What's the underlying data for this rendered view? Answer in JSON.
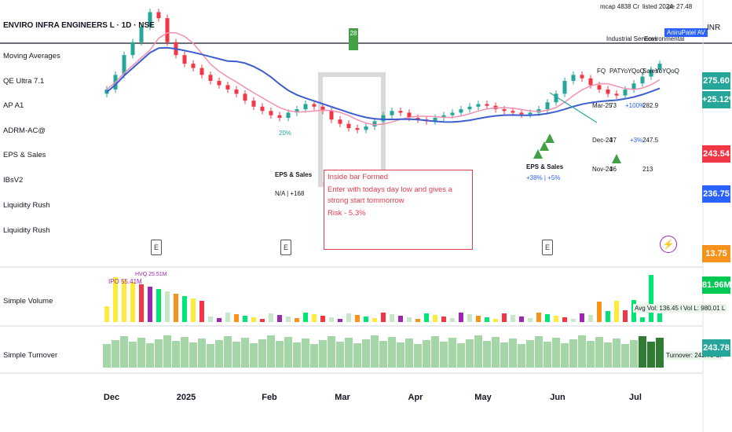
{
  "header": {
    "title": "ENVIRO INFRA ENGINEERS L · 1D · NSE",
    "currency": "INR",
    "marketcap": "mcap 4838 Cr",
    "listed": "listed 2024",
    "pe": "pe 27.48",
    "sector": "Industrial Services",
    "industry": "Environmental",
    "tag": "AniruPatel AV"
  },
  "indicators": [
    "Moving Averages",
    "QE Ultra 7.1",
    "AP A1",
    "ADRM-AC@",
    "EPS & Sales",
    "IBsV2",
    "Liquidity Rush",
    "Liquidity Rush"
  ],
  "panes": {
    "volume": "Simple Volume",
    "turnover": "Simple Turnover"
  },
  "alert": {
    "title": "Inside bar Formed",
    "line1": "Enter with todays day low and gives a strong start tommorrow",
    "risk": "Risk - 5.3%"
  },
  "eps_labels": [
    {
      "title": "EPS & Sales",
      "value": "N/A | +168"
    },
    {
      "title": "EPS & Sales",
      "value": "+38% | +5%"
    }
  ],
  "annotations": {
    "pct_20": "20%",
    "box_28": "28",
    "ipo_vol": "IPO 55.41M",
    "hvol": "HVQ 25.51M",
    "avg_vol": "Avg Vol: 136.45 Cr",
    "vol_l": "Vol L: 980.01 L",
    "turnover": "Turnover: 243.78 Cr"
  },
  "fundamentals_table": {
    "headers": [
      "FQ",
      "PAT",
      "YoY",
      "QoQ",
      "Sales",
      "YoY",
      "QoQ"
    ],
    "rows": [
      {
        "q": "Mar-25",
        "pat": "73",
        "yoy": "+100%",
        "qoq": "",
        "sales": "282.9",
        "s_yoy": "",
        "s_qoq": ""
      },
      {
        "q": "Dec-24",
        "pat": "37",
        "yoy": "",
        "qoq": "+3%",
        "sales": "247.5",
        "s_yoy": "",
        "s_qoq": ""
      },
      {
        "q": "Nov-24",
        "pat": "36",
        "yoy": "",
        "qoq": "",
        "sales": "213",
        "s_yoy": "",
        "s_qoq": ""
      }
    ]
  },
  "price_axis": {
    "ticks": [
      "275.60",
      "+25.12%",
      "243.54",
      "236.75",
      "13.75",
      "81.96M",
      "243.78"
    ],
    "colors": [
      "#26a69a",
      "#26a69a",
      "#f23645",
      "#2962ff",
      "#f7931a",
      "#00c853",
      "#26a69a"
    ]
  },
  "x_axis": [
    "Dec",
    "2025",
    "Feb",
    "Mar",
    "Apr",
    "May",
    "Jun",
    "Jul"
  ],
  "colors": {
    "up": "#26a69a",
    "down": "#f23645",
    "ma_blue": "#3c5fcf",
    "ma_pink": "#f48fb1"
  },
  "chart_data": {
    "type": "candlestick",
    "symbol": "ENVIRO INFRA ENGINEERS L",
    "timeframe": "1D",
    "currency": "INR",
    "x": [
      "Dec",
      "2025",
      "Feb",
      "Mar",
      "Apr",
      "May",
      "Jun",
      "Jul"
    ],
    "price_labels": {
      "last": 275.6,
      "change_pct": 25.12,
      "ma1": 243.54,
      "ma2": 236.75
    },
    "close_path": [
      245,
      262,
      285,
      300,
      318,
      335,
      328,
      300,
      285,
      275,
      270,
      262,
      255,
      250,
      245,
      240,
      232,
      225,
      220,
      215,
      212,
      218,
      222,
      228,
      225,
      220,
      210,
      205,
      200,
      198,
      202,
      208,
      215,
      220,
      218,
      212,
      210,
      208,
      212,
      215,
      218,
      222,
      225,
      228,
      226,
      222,
      220,
      218,
      216,
      218,
      222,
      230,
      240,
      255,
      262,
      258,
      250,
      245,
      240,
      238,
      245,
      252,
      260,
      268,
      275
    ]
  }
}
